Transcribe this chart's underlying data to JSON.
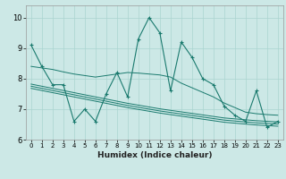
{
  "xlabel": "Humidex (Indice chaleur)",
  "bg_color": "#cce8e6",
  "line_color": "#1a7a6e",
  "grid_color": "#aad4d0",
  "xlim": [
    -0.5,
    23.5
  ],
  "ylim": [
    6.0,
    10.4
  ],
  "yticks": [
    6,
    7,
    8,
    9,
    10
  ],
  "xticks": [
    0,
    1,
    2,
    3,
    4,
    5,
    6,
    7,
    8,
    9,
    10,
    11,
    12,
    13,
    14,
    15,
    16,
    17,
    18,
    19,
    20,
    21,
    22,
    23
  ],
  "main_series": [
    9.1,
    8.4,
    7.8,
    7.8,
    6.6,
    7.0,
    6.6,
    7.5,
    8.2,
    7.4,
    9.3,
    10.0,
    9.5,
    7.6,
    9.2,
    8.7,
    8.0,
    7.8,
    7.1,
    6.8,
    6.6,
    7.6,
    6.4,
    6.6
  ],
  "trend1": [
    8.4,
    8.35,
    8.3,
    8.22,
    8.15,
    8.1,
    8.05,
    8.1,
    8.15,
    8.2,
    8.18,
    8.15,
    8.12,
    8.05,
    7.85,
    7.7,
    7.55,
    7.4,
    7.2,
    7.05,
    6.9,
    6.85,
    6.82,
    6.8
  ],
  "trend2": [
    7.82,
    7.75,
    7.68,
    7.61,
    7.54,
    7.47,
    7.4,
    7.33,
    7.26,
    7.19,
    7.13,
    7.07,
    7.01,
    6.96,
    6.91,
    6.86,
    6.81,
    6.76,
    6.71,
    6.68,
    6.65,
    6.62,
    6.6,
    6.58
  ],
  "trend3": [
    7.75,
    7.68,
    7.61,
    7.54,
    7.47,
    7.4,
    7.33,
    7.26,
    7.19,
    7.12,
    7.06,
    7.0,
    6.94,
    6.89,
    6.84,
    6.79,
    6.74,
    6.69,
    6.64,
    6.61,
    6.58,
    6.55,
    6.53,
    6.51
  ],
  "trend4": [
    7.68,
    7.61,
    7.54,
    7.47,
    7.4,
    7.33,
    7.26,
    7.19,
    7.12,
    7.05,
    6.99,
    6.93,
    6.87,
    6.82,
    6.77,
    6.72,
    6.67,
    6.62,
    6.57,
    6.54,
    6.51,
    6.48,
    6.46,
    6.44
  ]
}
